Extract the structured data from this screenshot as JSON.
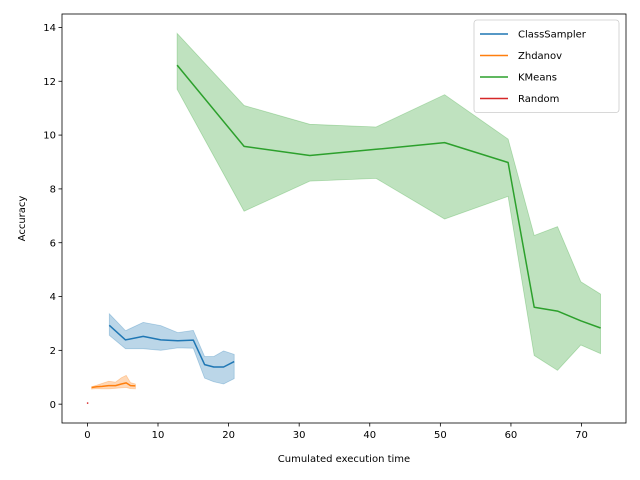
{
  "chart_data": {
    "type": "line",
    "xlabel": "Cumulated execution time",
    "ylabel": "Accuracy",
    "xlim": [
      -3.6,
      76.3
    ],
    "ylim": [
      -0.7,
      14.5
    ],
    "xticks": [
      0,
      10,
      20,
      30,
      40,
      50,
      60,
      70
    ],
    "yticks": [
      0,
      2,
      4,
      6,
      8,
      10,
      12,
      14
    ],
    "grid": false,
    "legend_position": "top-right",
    "series": [
      {
        "name": "ClassSampler",
        "color": "#1f77b4",
        "x": [
          3.1,
          5.4,
          7.9,
          10.4,
          12.8,
          15.0,
          16.6,
          17.9,
          19.3,
          20.8
        ],
        "y": [
          2.93,
          2.39,
          2.52,
          2.39,
          2.36,
          2.38,
          1.47,
          1.38,
          1.38,
          1.58
        ],
        "upper": [
          3.36,
          2.73,
          3.04,
          2.92,
          2.66,
          2.74,
          1.77,
          1.77,
          1.98,
          1.85
        ],
        "lower": [
          2.56,
          2.06,
          2.06,
          2.0,
          2.09,
          2.08,
          0.97,
          0.83,
          0.75,
          0.95
        ]
      },
      {
        "name": "Zhdanov",
        "color": "#ff7f0e",
        "x": [
          0.6,
          1.3,
          2.1,
          3.0,
          4.0,
          4.8,
          5.5,
          6.1,
          6.8
        ],
        "y": [
          0.62,
          0.65,
          0.66,
          0.69,
          0.69,
          0.75,
          0.79,
          0.69,
          0.68
        ],
        "upper": [
          0.65,
          0.7,
          0.77,
          0.85,
          0.82,
          0.98,
          1.07,
          0.8,
          0.75
        ],
        "lower": [
          0.56,
          0.58,
          0.57,
          0.57,
          0.59,
          0.61,
          0.62,
          0.58,
          0.57
        ]
      },
      {
        "name": "KMeans",
        "color": "#2ca02c",
        "x": [
          12.7,
          22.2,
          31.5,
          40.9,
          50.6,
          59.6,
          63.3,
          66.6,
          69.9,
          72.7
        ],
        "y": [
          12.6,
          9.58,
          9.24,
          9.47,
          9.72,
          8.98,
          3.6,
          3.46,
          3.1,
          2.83
        ],
        "upper": [
          13.78,
          11.1,
          10.4,
          10.3,
          11.5,
          9.85,
          6.27,
          6.6,
          4.55,
          4.09
        ],
        "lower": [
          11.7,
          7.17,
          8.29,
          8.39,
          6.88,
          7.72,
          1.81,
          1.26,
          2.2,
          1.88
        ]
      },
      {
        "name": "Random",
        "color": "#d62728",
        "x": [
          0.0,
          0.05
        ],
        "y": [
          0.04,
          0.04
        ],
        "upper": [
          0.04,
          0.04
        ],
        "lower": [
          0.04,
          0.04
        ]
      }
    ]
  }
}
